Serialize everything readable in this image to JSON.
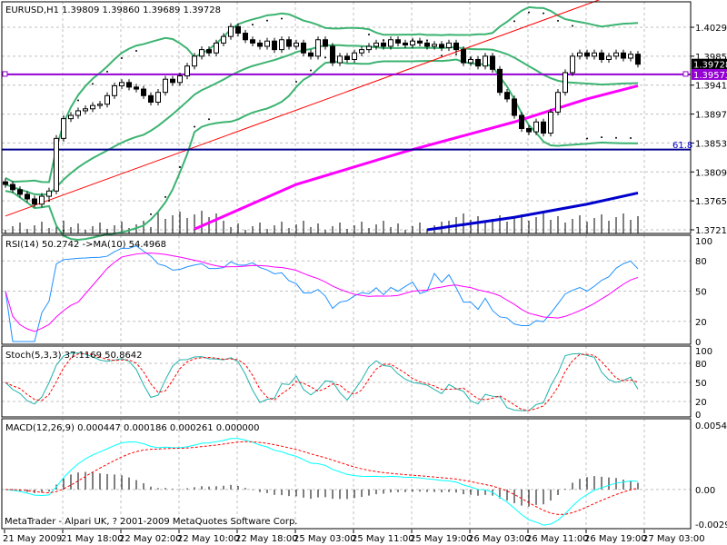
{
  "header": {
    "symbol": "EURUSD,H1",
    "ohlc": "1.39809 1.39860 1.39689 1.39728"
  },
  "panels": {
    "rsi_label": "RSI(14) 50.2742   ->MA(10) 54.4968",
    "stoch_label": "Stoch(5,3,3) 37.1169 50.8642",
    "macd_label": "MACD(12,26,9) 0.000447 0.000186 0.000261 0.000000"
  },
  "footer": {
    "copyright": "MetaTrader - Alpari UK, ? 2001-2009 MetaQuotes Software Corp."
  },
  "colors": {
    "bull": "#ffffff",
    "bear": "#000000",
    "bollinger": "#3cb371",
    "ma_fast": "#ff00ff",
    "ma_slow": "#0000cd",
    "trendline": "#ff0000",
    "level_line": "#9400d3",
    "fibo": "#00008b",
    "rsi": "#1e90ff",
    "stoch_main": "#20b2aa",
    "stoch_signal": "#ff0000",
    "macd_line": "#00ffff",
    "macd_signal": "#ff0000"
  },
  "chart_data": {
    "type": "candlestick",
    "price_axis": {
      "ticks": [
        "1.40290",
        "1.39850",
        "1.39410",
        "1.38970",
        "1.38530",
        "1.38090",
        "1.37650",
        "1.37210"
      ],
      "range": [
        1.3711,
        1.4072
      ]
    },
    "current_price": "1.39728",
    "level_price": "1.39573",
    "fibo_label": "61.8",
    "fibo_price": 1.3843,
    "time_ticks": [
      "21 May 2009",
      "21 May 18:00",
      "22 May 02:00",
      "22 May 10:00",
      "22 May 18:00",
      "25 May 03:00",
      "25 May 11:00",
      "25 May 19:00",
      "26 May 03:00",
      "26 May 11:00",
      "26 May 19:00",
      "27 May 03:00"
    ],
    "closes": [
      1.379,
      1.3782,
      1.3775,
      1.3768,
      1.376,
      1.3772,
      1.378,
      1.386,
      1.389,
      1.3895,
      1.3902,
      1.3905,
      1.391,
      1.3912,
      1.3925,
      1.394,
      1.3945,
      1.3938,
      1.3935,
      1.3925,
      1.3915,
      1.393,
      1.395,
      1.3945,
      1.3955,
      1.397,
      1.3985,
      1.3995,
      1.399,
      1.4005,
      1.4015,
      1.403,
      1.402,
      1.401,
      1.4005,
      1.4,
      1.4008,
      1.3995,
      1.401,
      1.4,
      1.4005,
      1.399,
      1.3985,
      1.401,
      1.4,
      1.3975,
      1.3985,
      1.398,
      1.399,
      1.3995,
      1.4,
      1.4005,
      1.4,
      1.401,
      1.4005,
      1.4002,
      1.4008,
      1.4005,
      1.4,
      1.4003,
      1.3998,
      1.4005,
      1.3995,
      1.3975,
      1.398,
      1.397,
      1.3985,
      1.3965,
      1.393,
      1.392,
      1.3895,
      1.3875,
      1.387,
      1.3885,
      1.3868,
      1.39,
      1.393,
      1.396,
      1.3985,
      1.399,
      1.3985,
      1.399,
      1.398,
      1.3985,
      1.399,
      1.3982,
      1.3988,
      1.39728
    ],
    "ma_fast_points": [
      [
        26,
        1.3722
      ],
      [
        40,
        1.379
      ],
      [
        55,
        1.384
      ],
      [
        70,
        1.3885
      ],
      [
        80,
        1.392
      ],
      [
        87,
        1.394
      ]
    ],
    "ma_slow_points": [
      [
        58,
        1.3721
      ],
      [
        70,
        1.374
      ],
      [
        80,
        1.376
      ],
      [
        87,
        1.3777
      ]
    ],
    "trendline_points": [
      [
        0,
        1.3742
      ],
      [
        82,
        1.4072
      ]
    ],
    "rsi_axis": [
      "100",
      "80",
      "50",
      "20",
      "0"
    ],
    "stoch_axis": [
      "100",
      "80",
      "50",
      "20",
      "0"
    ],
    "macd_axis": [
      "0.005411",
      "0.00",
      "-0.00291"
    ],
    "macd_range": [
      -0.00291,
      0.005411
    ]
  }
}
